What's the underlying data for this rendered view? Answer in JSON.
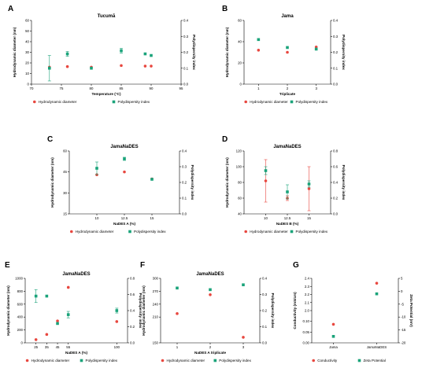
{
  "colors": {
    "hd": "#e8473f",
    "pdi": "#1aa37a",
    "err_hd": "#e8473f",
    "err_pdi": "#1aa37a"
  },
  "chart_data": [
    {
      "id": "A",
      "letter": "A",
      "type": "scatter",
      "title": "Tucumã",
      "xlabel": "Temperature (°C)",
      "ylabel": "Hydrodynamic diameter (nm)",
      "y2label": "Polydispersity index",
      "xlim": [
        70,
        95
      ],
      "ylim": [
        0,
        60
      ],
      "y2lim": [
        0,
        0.4
      ],
      "xticks": [
        70,
        75,
        80,
        85,
        90,
        95
      ],
      "yticks": [
        0,
        10,
        20,
        30,
        40,
        50,
        60
      ],
      "y2ticks": [
        0.0,
        0.1,
        0.2,
        0.3,
        0.4
      ],
      "legend": [
        "Hydrodynamic diameter",
        "Polydispersity index"
      ],
      "series": [
        {
          "axis": "y",
          "marker": "circle",
          "points": [
            {
              "x": 73,
              "y": 16
            },
            {
              "x": 76,
              "y": 16.5
            },
            {
              "x": 80,
              "y": 16
            },
            {
              "x": 85,
              "y": 17.5
            },
            {
              "x": 89,
              "y": 17
            },
            {
              "x": 90,
              "y": 17
            }
          ]
        },
        {
          "axis": "y2",
          "marker": "square",
          "points": [
            {
              "x": 73,
              "y": 0.1,
              "err": 0.08
            },
            {
              "x": 76,
              "y": 0.19,
              "err": 0.015
            },
            {
              "x": 80,
              "y": 0.1
            },
            {
              "x": 85,
              "y": 0.21,
              "err": 0.015
            },
            {
              "x": 89,
              "y": 0.19
            },
            {
              "x": 90,
              "y": 0.18
            }
          ]
        }
      ]
    },
    {
      "id": "B",
      "letter": "B",
      "type": "scatter",
      "title": "Jama",
      "xlabel": "Triplicate",
      "ylabel": "Hydrodynamic diameter (nm)",
      "y2label": "Polydispersity index",
      "xlim": [
        0.5,
        3.5
      ],
      "ylim": [
        0,
        60
      ],
      "y2lim": [
        0,
        0.4
      ],
      "xticks": [
        1,
        2,
        3
      ],
      "yticks": [
        0,
        20,
        40,
        60
      ],
      "y2ticks": [
        0.0,
        0.1,
        0.2,
        0.3,
        0.4
      ],
      "legend": [
        "Hydrodynamic diameter",
        "Polydispersity index"
      ],
      "series": [
        {
          "axis": "y",
          "marker": "circle",
          "points": [
            {
              "x": 1,
              "y": 32
            },
            {
              "x": 2,
              "y": 30
            },
            {
              "x": 3,
              "y": 35
            }
          ]
        },
        {
          "axis": "y2",
          "marker": "square",
          "points": [
            {
              "x": 1,
              "y": 0.28
            },
            {
              "x": 2,
              "y": 0.23
            },
            {
              "x": 3,
              "y": 0.22
            }
          ]
        }
      ]
    },
    {
      "id": "C",
      "letter": "C",
      "type": "scatter",
      "title": "JamaNaDES",
      "xlabel": "NaDES A (%)",
      "ylabel": "Hydrodynamic diameter (nm)",
      "y2label": "Polydispersity index",
      "xlim": [
        7.5,
        17.5
      ],
      "ylim": [
        15,
        60
      ],
      "y2lim": [
        0,
        0.4
      ],
      "xticks": [
        10,
        12.5,
        15
      ],
      "yticks": [
        15,
        30,
        45,
        60
      ],
      "y2ticks": [
        0.0,
        0.1,
        0.2,
        0.3,
        0.4
      ],
      "legend": [
        "Hydrodynamic diameter",
        "Polydispersity index"
      ],
      "series": [
        {
          "axis": "y",
          "marker": "circle",
          "points": [
            {
              "x": 10,
              "y": 43
            },
            {
              "x": 12.5,
              "y": 45
            },
            {
              "x": 15,
              "y": 40
            }
          ]
        },
        {
          "axis": "y2",
          "marker": "square",
          "points": [
            {
              "x": 10,
              "y": 0.29,
              "err": 0.04
            },
            {
              "x": 12.5,
              "y": 0.35,
              "err": 0.01
            },
            {
              "x": 15,
              "y": 0.22
            }
          ]
        }
      ]
    },
    {
      "id": "D",
      "letter": "D",
      "type": "scatter",
      "title": "JamaNaDES",
      "xlabel": "NaDES B (%)",
      "ylabel": "Hydrodynamic diameter (nm)",
      "y2label": "Polydispersity index",
      "xlim": [
        7.5,
        17.5
      ],
      "ylim": [
        40,
        120
      ],
      "y2lim": [
        0,
        0.8
      ],
      "xticks": [
        10,
        12.5,
        15
      ],
      "yticks": [
        40,
        60,
        80,
        100,
        120
      ],
      "y2ticks": [
        0.0,
        0.2,
        0.4,
        0.6,
        0.8
      ],
      "legend": [
        "Hydrodynamic diameter",
        "Polydispersity index"
      ],
      "series": [
        {
          "axis": "y",
          "marker": "circle",
          "points": [
            {
              "x": 10,
              "y": 82,
              "err": 27
            },
            {
              "x": 12.5,
              "y": 60,
              "err": 3
            },
            {
              "x": 15,
              "y": 72,
              "err": 28
            }
          ]
        },
        {
          "axis": "y2",
          "marker": "square",
          "points": [
            {
              "x": 10,
              "y": 0.55,
              "err": 0.05
            },
            {
              "x": 12.5,
              "y": 0.28,
              "err": 0.09
            },
            {
              "x": 15,
              "y": 0.38,
              "err": 0.04
            }
          ]
        }
      ]
    },
    {
      "id": "E",
      "letter": "E",
      "type": "scatter",
      "title": "JamaNaDES",
      "xlabel": "NaDES A (%)",
      "ylabel": "Hydrodynamic diameter (nm)",
      "y2label": "Polydispersity index",
      "xlim": [
        15,
        110
      ],
      "ylim": [
        0,
        1000
      ],
      "y2lim": [
        0,
        0.8
      ],
      "xticks": [
        25,
        35,
        45,
        55,
        100
      ],
      "yticks": [
        0,
        200,
        400,
        600,
        800,
        1000
      ],
      "y2ticks": [
        0.0,
        0.2,
        0.4,
        0.6,
        0.8
      ],
      "legend": [
        "Hydrodynamic diameter",
        "Polydispersity index"
      ],
      "series": [
        {
          "axis": "y",
          "marker": "circle",
          "points": [
            {
              "x": 25,
              "y": 50
            },
            {
              "x": 35,
              "y": 130
            },
            {
              "x": 45,
              "y": 340
            },
            {
              "x": 55,
              "y": 860
            },
            {
              "x": 100,
              "y": 330
            }
          ]
        },
        {
          "axis": "y2",
          "marker": "square",
          "points": [
            {
              "x": 25,
              "y": 0.58,
              "err": 0.08
            },
            {
              "x": 35,
              "y": 0.58
            },
            {
              "x": 45,
              "y": 0.24
            },
            {
              "x": 55,
              "y": 0.35,
              "err": 0.04
            },
            {
              "x": 100,
              "y": 0.4,
              "err": 0.03
            }
          ]
        }
      ]
    },
    {
      "id": "F",
      "letter": "F",
      "type": "scatter",
      "title": "JamaNaDES",
      "xlabel": "NaDES A triplicate",
      "ylabel": "Hydrodynamic diameter (nm)",
      "y2label": "Polydispersity index",
      "xlim": [
        0.5,
        3.5
      ],
      "ylim": [
        150,
        300
      ],
      "y2lim": [
        0,
        0.4
      ],
      "xticks": [
        1,
        2,
        3
      ],
      "yticks": [
        150,
        210,
        240,
        270,
        300
      ],
      "y2ticks": [
        0.0,
        0.1,
        0.2,
        0.3,
        0.4
      ],
      "legend": [
        "Hydrodynamic diameter",
        "Polydispersity index"
      ],
      "series": [
        {
          "axis": "y",
          "marker": "circle",
          "points": [
            {
              "x": 1,
              "y": 218
            },
            {
              "x": 2,
              "y": 262
            },
            {
              "x": 3,
              "y": 163
            }
          ]
        },
        {
          "axis": "y2",
          "marker": "square",
          "points": [
            {
              "x": 1,
              "y": 0.34
            },
            {
              "x": 2,
              "y": 0.33
            },
            {
              "x": 3,
              "y": 0.36
            }
          ]
        }
      ]
    },
    {
      "id": "G",
      "letter": "G",
      "type": "scatter",
      "title": "",
      "xlabel": "",
      "ylabel": "Conductivity (mS/cm)",
      "y2label": "Zeta Potential (mV)",
      "xlim": [
        0.5,
        2.5
      ],
      "ylim": [
        0.0,
        2.4
      ],
      "y2lim": [
        -20,
        5
      ],
      "xticks": [
        1,
        2
      ],
      "xticklabels": [
        "Jama",
        "JamaNaDES"
      ],
      "yticks": [
        0.0,
        0.05,
        0.1,
        2.0,
        2.1,
        2.2,
        2.3,
        2.4
      ],
      "ytickpos": [
        0.0,
        0.4,
        0.8,
        1.2,
        1.5,
        1.8,
        2.1,
        2.4
      ],
      "yticklabels": [
        "0.00",
        "0.05",
        "0.10",
        "2.0",
        "2.1",
        "2.2",
        "2.3",
        "2.4"
      ],
      "y2ticks": [
        -20,
        -15,
        -10,
        -5,
        0,
        5
      ],
      "legend": [
        "Conductivity",
        "Zeta Potential"
      ],
      "series": [
        {
          "axis": "y",
          "marker": "circle",
          "points": [
            {
              "x": 1,
              "y": 0.69
            },
            {
              "x": 2,
              "y": 2.22
            }
          ]
        },
        {
          "axis": "y2",
          "marker": "square",
          "points": [
            {
              "x": 1,
              "y": -17.5
            },
            {
              "x": 2,
              "y": -1.0
            }
          ]
        }
      ]
    }
  ]
}
